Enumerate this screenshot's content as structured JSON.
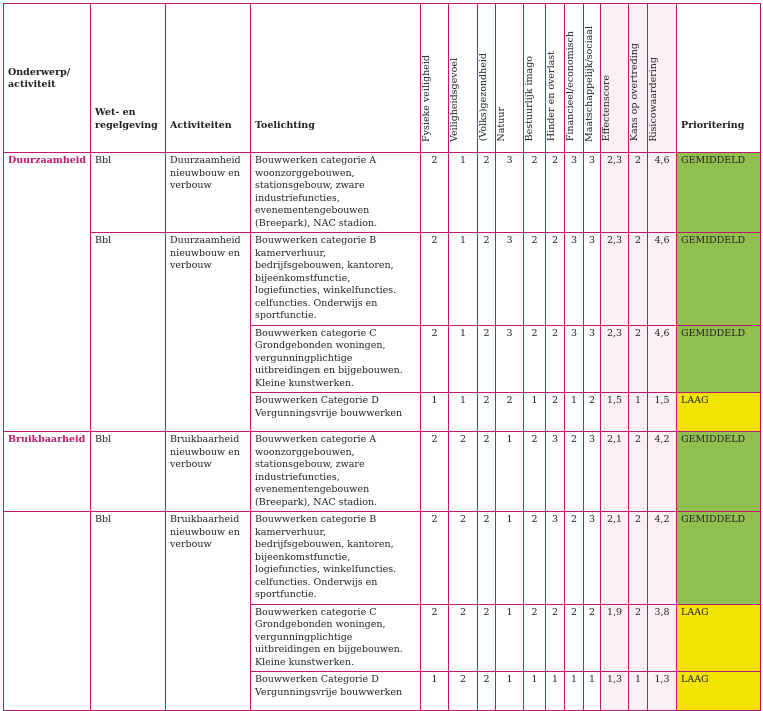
{
  "headers": {
    "onderwerp": "Onderwerp/ activiteit",
    "wet": "Wet- en regelgeving",
    "activiteiten": "Activiteiten",
    "toelichting": "Toelichting",
    "scores": [
      "Fysieke veiligheid",
      "Veiligheidsgevoel",
      "(Volks)gezondheid",
      "Natuur",
      "Bestuurlijk imago",
      "Hinder en overlast",
      "Financieel/economisch",
      "Maatschappelijk/sociaal",
      "Effectenscore",
      "Kans op overtreding",
      "Risicowaardering"
    ],
    "prioritering": "Prioritering"
  },
  "colors": {
    "border": "#c0186e",
    "gemiddeld": "#92c050",
    "laag": "#f2e300"
  },
  "rows": [
    {
      "onderwerp": "Duurzaamheid",
      "wet": "Bbl",
      "activiteit": "Duurzaamheid nieuwbouw en verbouw",
      "toelichting": "Bouwwerken categorie A woonzorggebouwen, stationsgebouw, zware industriefuncties, evenementengebouwen (Breepark), NAC stadion.",
      "scores": [
        "2",
        "1",
        "2",
        "3",
        "2",
        "2",
        "3",
        "3",
        "2,3",
        "2",
        "4,6"
      ],
      "prio": "GEMIDDELD"
    },
    {
      "wet": "Bbl",
      "activiteit": "Duurzaamheid nieuwbouw en verbouw",
      "toelichting": "Bouwwerken categorie B kamerverhuur, bedrijfsgebouwen, kantoren, bijeenkomstfunctie, logiefuncties, winkelfuncties. celfuncties. Onderwijs en sportfunctie.",
      "scores": [
        "2",
        "1",
        "2",
        "3",
        "2",
        "2",
        "3",
        "3",
        "2,3",
        "2",
        "4,6"
      ],
      "prio": "GEMIDDELD"
    },
    {
      "toelichting": "Bouwwerken categorie C Grondgebonden woningen, vergunningplichtige uitbreidingen en bijgebouwen. Kleine kunstwerken.",
      "scores": [
        "2",
        "1",
        "2",
        "3",
        "2",
        "2",
        "3",
        "3",
        "2,3",
        "2",
        "4,6"
      ],
      "prio": "GEMIDDELD"
    },
    {
      "toelichting": "Bouwwerken Categorie D Vergunningsvrije bouwwerken",
      "scores": [
        "1",
        "1",
        "2",
        "2",
        "1",
        "2",
        "1",
        "2",
        "1,5",
        "1",
        "1,5"
      ],
      "prio": "LAAG"
    },
    {
      "onderwerp": "Bruikbaarheid",
      "wet": "Bbl",
      "activiteit": "Bruikbaarheid nieuwbouw en verbouw",
      "toelichting": "Bouwwerken categorie A woonzorggebouwen, stationsgebouw, zware industriefuncties, evenementengebouwen (Breepark), NAC stadion.",
      "scores": [
        "2",
        "2",
        "2",
        "1",
        "2",
        "3",
        "2",
        "3",
        "2,1",
        "2",
        "4,2"
      ],
      "prio": "GEMIDDELD"
    },
    {
      "wet": "Bbl",
      "activiteit": "Bruikbaarheid nieuwbouw en verbouw",
      "toelichting": "Bouwwerken categorie B kamerverhuur, bedrijfsgebouwen, kantoren, bijeenkomstfunctie, logiefuncties, winkelfuncties. celfuncties. Onderwijs en sportfunctie.",
      "scores": [
        "2",
        "2",
        "2",
        "1",
        "2",
        "3",
        "2",
        "3",
        "2,1",
        "2",
        "4,2"
      ],
      "prio": "GEMIDDELD"
    },
    {
      "toelichting": "Bouwwerken categorie C Grondgebonden woningen, vergunningplichtige uitbreidingen en bijgebouwen. Kleine kunstwerken.",
      "scores": [
        "2",
        "2",
        "2",
        "1",
        "2",
        "2",
        "2",
        "2",
        "1,9",
        "2",
        "3,8"
      ],
      "prio": "LAAG"
    },
    {
      "toelichting": "Bouwwerken Categorie D Vergunningsvrije bouwwerken",
      "scores": [
        "1",
        "2",
        "2",
        "1",
        "1",
        "1",
        "1",
        "1",
        "1,3",
        "1",
        "1,3"
      ],
      "prio": "LAAG"
    }
  ]
}
